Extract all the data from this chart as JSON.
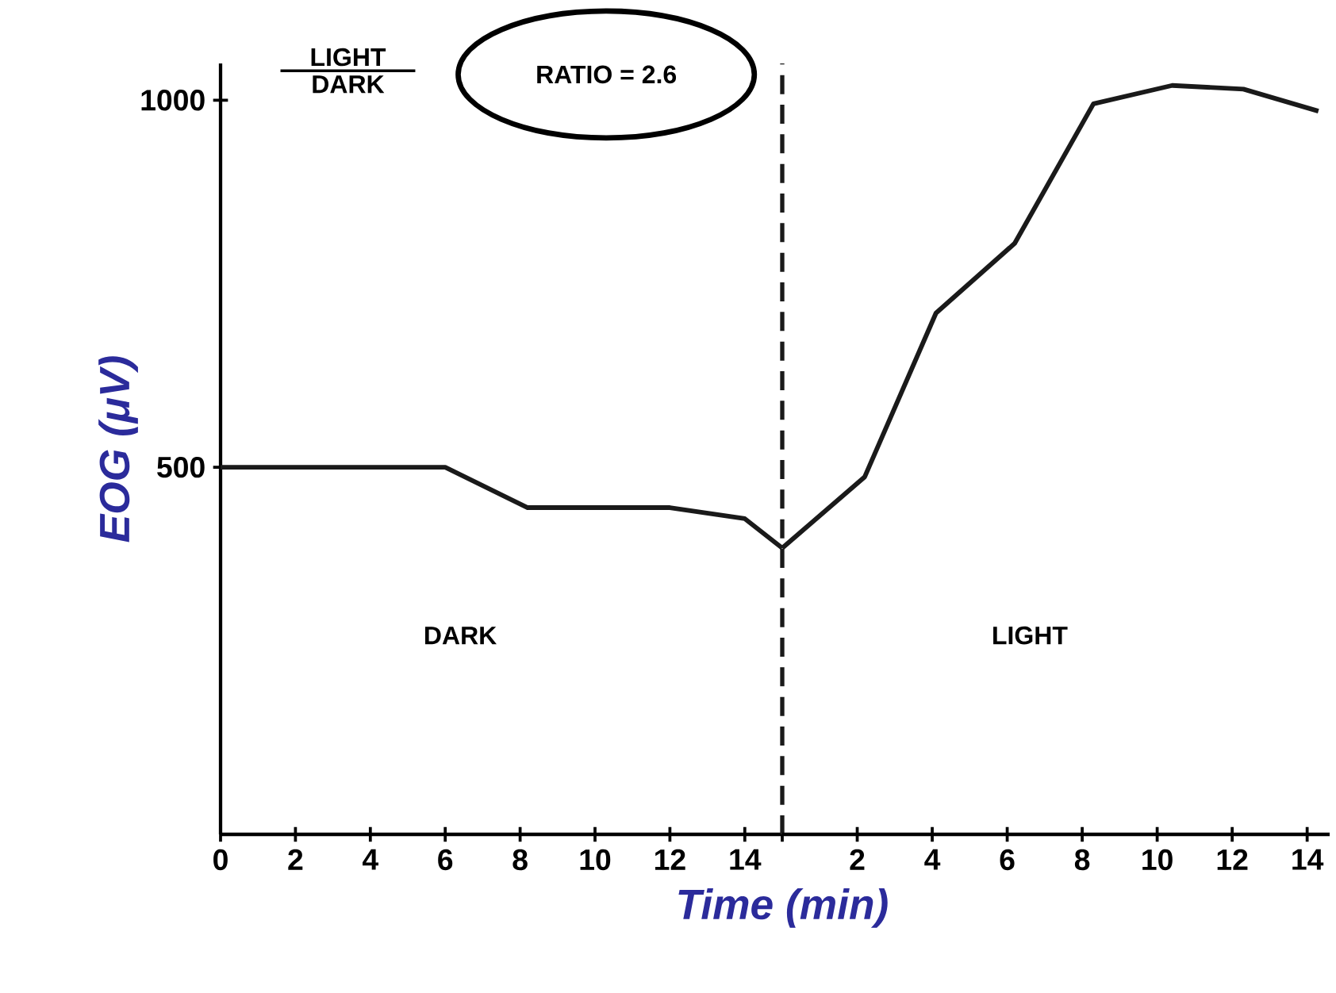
{
  "chart_data": [
    {
      "type": "line",
      "xlabel": "Time (min)",
      "ylabel": "EOG (μV)",
      "x": [
        0,
        6,
        8.2,
        12,
        14,
        15
      ],
      "series": [
        {
          "color": "#1a1a1a",
          "values": [
            500,
            500,
            445,
            445,
            430,
            390
          ]
        }
      ],
      "xlim": [
        0,
        15
      ],
      "ylim": [
        0,
        1050
      ],
      "xticks": [
        0,
        2,
        4,
        6,
        8,
        10,
        12,
        14,
        {
          "value": 15,
          "label": null
        }
      ],
      "yticks": [
        500,
        1000
      ],
      "ref_lines": [
        {
          "axis": "x",
          "value": 15,
          "line_style": "dashed",
          "color": "#1a1a1a"
        }
      ],
      "annotations": [
        "LIGHT",
        "DARK",
        "RATIO = 2.6",
        "DARK"
      ],
      "grid": false,
      "marker": "none",
      "line_style": "solid"
    },
    {
      "type": "line",
      "x": [
        0,
        2.2,
        4.1,
        6.2,
        8.3,
        10.4,
        12.3,
        14.3
      ],
      "series": [
        {
          "color": "#1a1a1a",
          "values": [
            390,
            487,
            710,
            805,
            995,
            1020,
            1015,
            985
          ]
        }
      ],
      "xlim": [
        0,
        14.6
      ],
      "ylim": [
        0,
        1050
      ],
      "xticks": [
        2,
        4,
        6,
        8,
        10,
        12,
        14
      ],
      "tick_labels": "x",
      "annotations": [
        "LIGHT"
      ],
      "grid": false,
      "marker": "none",
      "line_style": "solid"
    }
  ]
}
